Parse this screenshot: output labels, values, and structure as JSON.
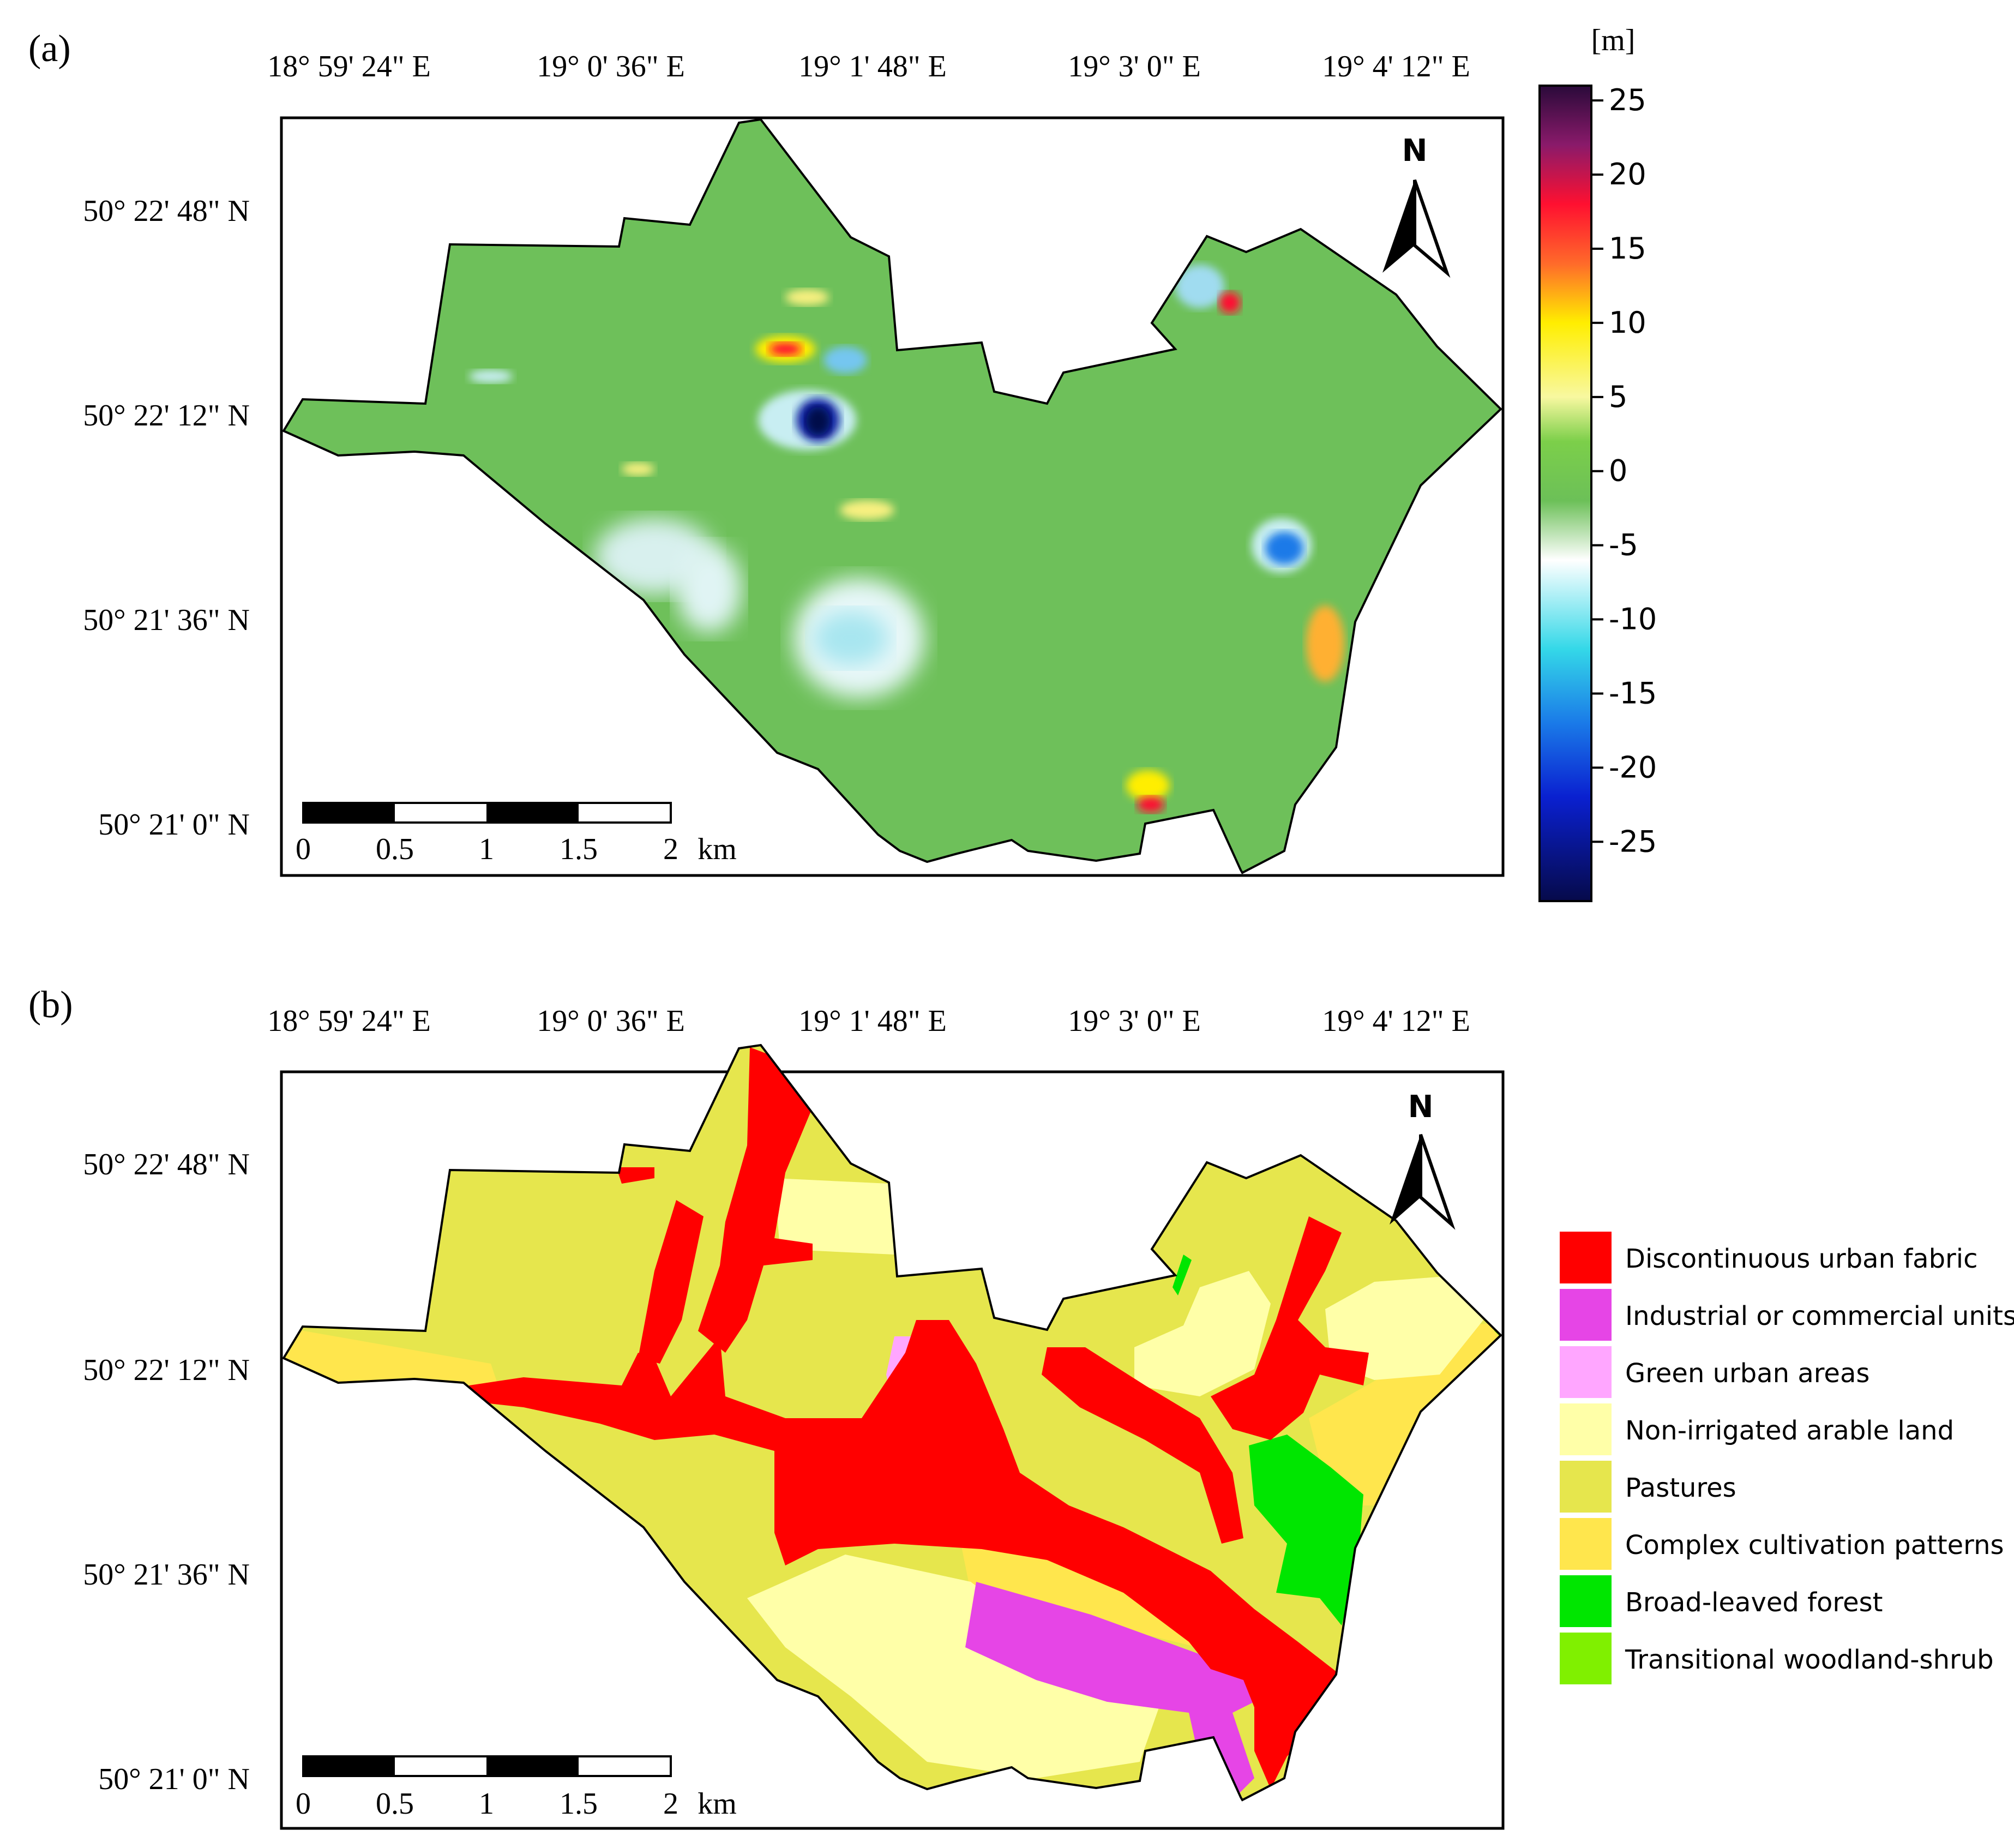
{
  "panel_a": {
    "label": "(a)",
    "lon_labels": [
      "18° 59' 24\" E",
      "19° 0' 36\" E",
      "19° 1' 48\" E",
      "19° 3' 0\" E",
      "19° 4' 12\" E"
    ],
    "lat_labels": [
      "50° 22' 48\" N",
      "50° 22' 12\" N",
      "50° 21' 36\" N",
      "50° 21' 0\" N"
    ],
    "north_label": "N",
    "scale_bar": {
      "ticks": [
        "0",
        "0.5",
        "1",
        "1.5",
        "2"
      ],
      "unit": "km"
    },
    "colorbar": {
      "unit_label": "[m]",
      "tick_labels": [
        "25",
        "20",
        "15",
        "10",
        "5",
        "0",
        "-5",
        "-10",
        "-15",
        "-20",
        "-25"
      ],
      "range": [
        -29,
        26
      ],
      "stops": [
        {
          "value": 26,
          "color": "#2a0a3a"
        },
        {
          "value": 22,
          "color": "#8a1a6a"
        },
        {
          "value": 18,
          "color": "#ff1030"
        },
        {
          "value": 14,
          "color": "#ff6a2a"
        },
        {
          "value": 10,
          "color": "#ffee00"
        },
        {
          "value": 5,
          "color": "#f8f8a0"
        },
        {
          "value": 2,
          "color": "#7ccf4a"
        },
        {
          "value": -2,
          "color": "#6cc058"
        },
        {
          "value": -6,
          "color": "#ffffff"
        },
        {
          "value": -12,
          "color": "#34d8e8"
        },
        {
          "value": -17,
          "color": "#1a7ae8"
        },
        {
          "value": -22,
          "color": "#0a20d0"
        },
        {
          "value": -29,
          "color": "#060a4a"
        }
      ]
    },
    "base_color": "#6ec05a"
  },
  "panel_b": {
    "label": "(b)",
    "lon_labels": [
      "18° 59' 24\" E",
      "19° 0' 36\" E",
      "19° 1' 48\" E",
      "19° 3' 0\" E",
      "19° 4' 12\" E"
    ],
    "lat_labels": [
      "50° 22' 48\" N",
      "50° 22' 12\" N",
      "50° 21' 36\" N",
      "50° 21' 0\" N"
    ],
    "north_label": "N",
    "scale_bar": {
      "ticks": [
        "0",
        "0.5",
        "1",
        "1.5",
        "2"
      ],
      "unit": "km"
    },
    "legend": [
      {
        "label": "Discontinuous urban fabric",
        "color": "#ff0000"
      },
      {
        "label": "Industrial or commercial units",
        "color": "#e645e6"
      },
      {
        "label": "Green urban areas",
        "color": "#ffa6ff"
      },
      {
        "label": "Non-irrigated arable land",
        "color": "#ffffa8"
      },
      {
        "label": "Pastures",
        "color": "#e6e64d"
      },
      {
        "label": "Complex cultivation patterns",
        "color": "#ffe64d"
      },
      {
        "label": "Broad-leaved forest",
        "color": "#00e600"
      },
      {
        "label": "Transitional woodland-shrub",
        "color": "#80f000"
      }
    ]
  }
}
